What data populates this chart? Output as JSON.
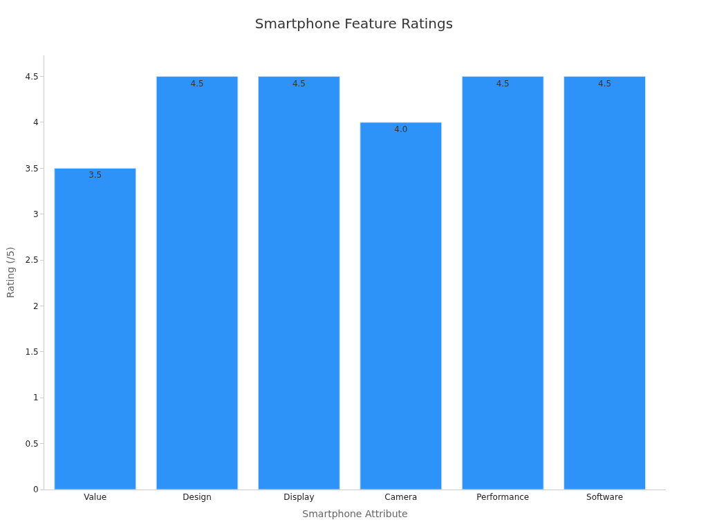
{
  "chart_data": {
    "type": "bar",
    "title": "Smartphone Feature Ratings",
    "xlabel": "Smartphone Attribute",
    "ylabel": "Rating (/5)",
    "categories": [
      "Value",
      "Design",
      "Display",
      "Camera",
      "Performance",
      "Software"
    ],
    "values": [
      3.5,
      4.5,
      4.5,
      4.0,
      4.5,
      4.5
    ],
    "value_labels": [
      "3.5",
      "4.5",
      "4.5",
      "4.0",
      "4.5",
      "4.5"
    ],
    "color": "#2e93f9",
    "ylim": [
      0,
      4.73
    ],
    "yticks": [
      0,
      0.5,
      1,
      1.5,
      2,
      2.5,
      3,
      3.5,
      4,
      4.5
    ]
  }
}
